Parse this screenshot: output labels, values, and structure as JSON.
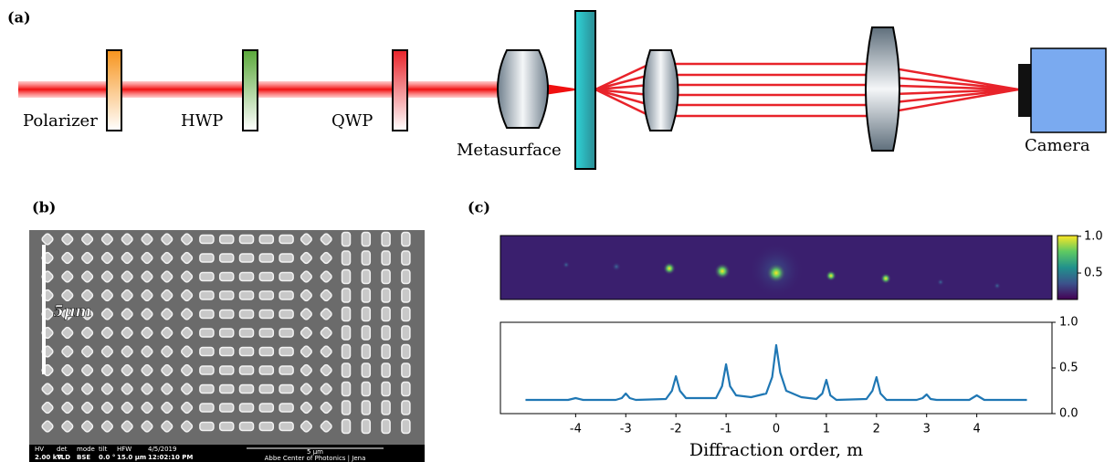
{
  "panels": {
    "a": {
      "label": "(a)",
      "components": [
        "Polarizer",
        "HWP",
        "QWP",
        "Metasurface",
        "Camera"
      ]
    },
    "b": {
      "label": "(b)",
      "scale_bar": "5μm",
      "info_bar": {
        "headers": [
          "HV",
          "det",
          "mode",
          "tilt",
          "HFW",
          "4/5/2019"
        ],
        "values": [
          "2.00 kV",
          "TLD",
          "BSE",
          "0.0 °",
          "15.0 μm",
          "12:02:10 PM"
        ],
        "scale": "5 μm",
        "institute": "Abbe Center of Photonics | Jena"
      }
    },
    "c": {
      "label": "(c)"
    }
  },
  "chart_data": [
    {
      "type": "heatmap",
      "clim": [
        0.14,
        1.01
      ],
      "cticks": [
        0.5,
        {
          "value": 1,
          "label": "1.0"
        }
      ]
    },
    {
      "type": "line",
      "xlabel": "Diffraction order, m",
      "xlim": [
        -5.5,
        5.5
      ],
      "ylim": [
        0,
        1
      ],
      "xticks": [
        -4,
        -3,
        -2,
        -1,
        0,
        1,
        2,
        3,
        4
      ],
      "yticks": [
        {
          "value": 0,
          "label": "0.0"
        },
        0.5,
        {
          "value": 1,
          "label": "1.0"
        }
      ],
      "x": [
        -5,
        -4.15,
        -4,
        -3.85,
        -3.2,
        -3.08,
        -3,
        -2.92,
        -2.8,
        -2.2,
        -2.08,
        -2,
        -1.92,
        -1.8,
        -1.2,
        -1.08,
        -1,
        -0.92,
        -0.8,
        -0.5,
        -0.2,
        -0.08,
        0,
        0.08,
        0.2,
        0.5,
        0.8,
        0.92,
        1,
        1.08,
        1.2,
        1.8,
        1.92,
        2,
        2.08,
        2.2,
        2.8,
        2.92,
        3,
        3.08,
        3.2,
        3.85,
        4,
        4.15,
        5
      ],
      "series": [
        {
          "color": "#1f77b4",
          "values": [
            0.15,
            0.15,
            0.17,
            0.15,
            0.15,
            0.17,
            0.22,
            0.17,
            0.15,
            0.16,
            0.25,
            0.41,
            0.25,
            0.17,
            0.17,
            0.3,
            0.54,
            0.3,
            0.2,
            0.18,
            0.22,
            0.4,
            0.75,
            0.45,
            0.25,
            0.18,
            0.16,
            0.22,
            0.37,
            0.2,
            0.15,
            0.16,
            0.25,
            0.4,
            0.22,
            0.15,
            0.15,
            0.17,
            0.21,
            0.16,
            0.15,
            0.15,
            0.2,
            0.15,
            0.15
          ]
        }
      ]
    }
  ]
}
